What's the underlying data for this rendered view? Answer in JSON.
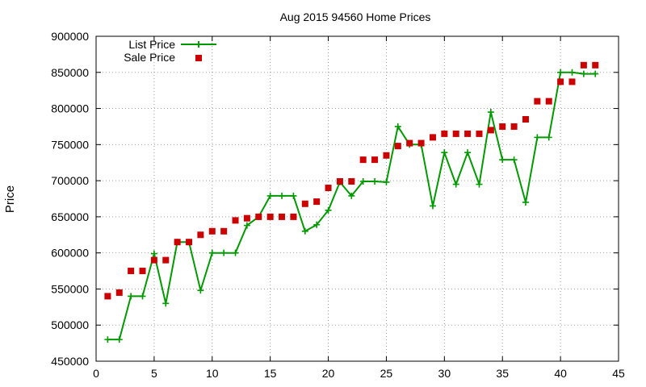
{
  "chart_data": {
    "type": "line",
    "title": "Aug 2015 94560 Home Prices",
    "xlabel": "",
    "ylabel": "Price",
    "xlim": [
      0,
      45
    ],
    "ylim": [
      450000,
      900000
    ],
    "x_ticks": [
      "0",
      "5",
      "10",
      "15",
      "20",
      "25",
      "30",
      "35",
      "40",
      "45"
    ],
    "y_ticks": [
      "450000",
      "500000",
      "550000",
      "600000",
      "650000",
      "700000",
      "750000",
      "800000",
      "850000",
      "900000"
    ],
    "grid": true,
    "legend_position": "top-left",
    "series": [
      {
        "name": "List Price",
        "style": "line-with-plus-markers",
        "color": "#009900",
        "x": [
          1,
          2,
          3,
          4,
          5,
          6,
          7,
          8,
          9,
          10,
          11,
          12,
          13,
          14,
          15,
          16,
          17,
          18,
          19,
          20,
          21,
          22,
          23,
          24,
          25,
          26,
          27,
          28,
          29,
          30,
          31,
          32,
          33,
          34,
          35,
          36,
          37,
          38,
          39,
          40,
          41,
          42,
          43
        ],
        "y": [
          480000,
          480000,
          540000,
          540000,
          599000,
          530000,
          615000,
          615000,
          548000,
          600000,
          600000,
          600000,
          638000,
          650000,
          679000,
          679000,
          679000,
          630000,
          639000,
          659000,
          698000,
          679000,
          699000,
          699000,
          698000,
          775000,
          750000,
          750000,
          665000,
          739000,
          695000,
          739000,
          695000,
          795000,
          729000,
          729000,
          670000,
          760000,
          760000,
          850000,
          850000,
          848000,
          848000
        ]
      },
      {
        "name": "Sale Price",
        "style": "square-markers",
        "color": "#cc0000",
        "x": [
          1,
          2,
          3,
          4,
          5,
          6,
          7,
          8,
          9,
          10,
          11,
          12,
          13,
          14,
          15,
          16,
          17,
          18,
          19,
          20,
          21,
          22,
          23,
          24,
          25,
          26,
          27,
          28,
          29,
          30,
          31,
          32,
          33,
          34,
          35,
          36,
          37,
          38,
          39,
          40,
          41,
          42,
          43
        ],
        "y": [
          540000,
          545000,
          575000,
          575000,
          590000,
          590000,
          615000,
          615000,
          625000,
          630000,
          630000,
          645000,
          648000,
          650000,
          650000,
          650000,
          650000,
          668000,
          671000,
          690000,
          699000,
          699000,
          729000,
          729000,
          735000,
          748000,
          752000,
          752000,
          760000,
          765000,
          765000,
          765000,
          765000,
          770000,
          775000,
          775000,
          785000,
          810000,
          810000,
          837000,
          837000,
          860000,
          860000
        ]
      }
    ]
  }
}
